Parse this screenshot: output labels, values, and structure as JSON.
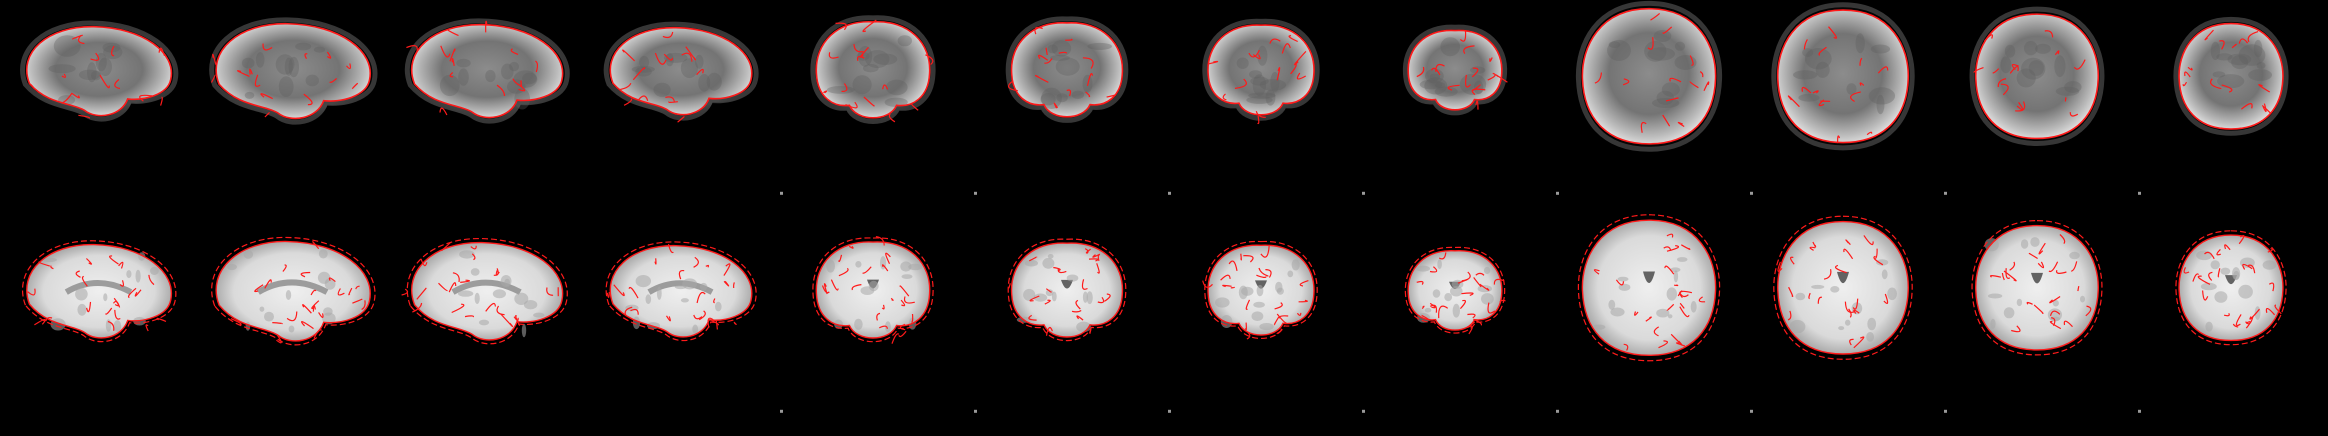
{
  "figure": {
    "background_color": "#000000",
    "edge_color": "#ff1a1a",
    "rows": [
      {
        "name": "functional-row",
        "kind": "epi",
        "panels": [
          {
            "view": "sagittal"
          },
          {
            "view": "sagittal"
          },
          {
            "view": "sagittal"
          },
          {
            "view": "sagittal"
          },
          {
            "view": "coronal"
          },
          {
            "view": "coronal"
          },
          {
            "view": "coronal"
          },
          {
            "view": "coronal"
          },
          {
            "view": "axial"
          },
          {
            "view": "axial"
          },
          {
            "view": "axial"
          },
          {
            "view": "axial"
          }
        ]
      },
      {
        "name": "template-row",
        "kind": "t1",
        "panels": [
          {
            "view": "sagittal"
          },
          {
            "view": "sagittal"
          },
          {
            "view": "sagittal"
          },
          {
            "view": "sagittal"
          },
          {
            "view": "coronal"
          },
          {
            "view": "coronal"
          },
          {
            "view": "coronal"
          },
          {
            "view": "coronal"
          },
          {
            "view": "axial"
          },
          {
            "view": "axial"
          },
          {
            "view": "axial"
          },
          {
            "view": "axial"
          }
        ]
      }
    ]
  }
}
